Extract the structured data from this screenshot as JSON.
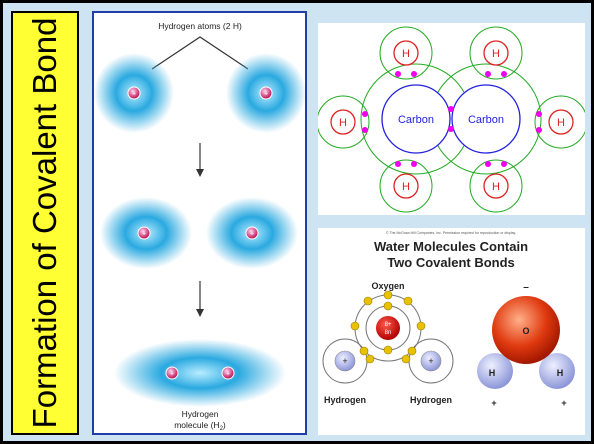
{
  "title": "Formation of Covalent Bond",
  "colors": {
    "background": "#cfe4f3",
    "title_bg": "#ffff33",
    "panel_border": "#1f3fa8",
    "electron_cloud": "#2aa9e0",
    "nucleus": "#d63384",
    "carbon_ring": "#2222dd",
    "hydrogen_ring": "#dd2222",
    "shell_ring": "#22aa22",
    "electron_dot": "#ee00ee",
    "oxygen_red": "#cc2200",
    "hydrogen_lavender": "#b0b8e8"
  },
  "hydrogen_panel": {
    "top_label": "Hydrogen atoms (2 H)",
    "nucleus_symbol": "+",
    "bottom_label_line1": "Hydrogen",
    "bottom_label_line2_prefix": "molecule (H",
    "bottom_label_subscript": "2",
    "bottom_label_suffix": ")"
  },
  "ethane_panel": {
    "carbon_label": "Carbon",
    "hydrogen_label": "H"
  },
  "water_panel": {
    "copyright": "© The McGraw-Hill Companies, Inc. Permission required for reproduction or display.",
    "title_line1": "Water Molecules Contain",
    "title_line2": "Two Covalent Bonds",
    "oxygen_label": "Oxygen",
    "nucleus_line1": "8+",
    "nucleus_line2": "8n",
    "proton_symbol": "+",
    "electron_symbol": "−",
    "hydrogen_left_label": "Hydrogen",
    "hydrogen_right_label": "Hydrogen",
    "model_o": "O",
    "model_h": "H",
    "charge_negative": "–",
    "charge_positive": "+"
  }
}
